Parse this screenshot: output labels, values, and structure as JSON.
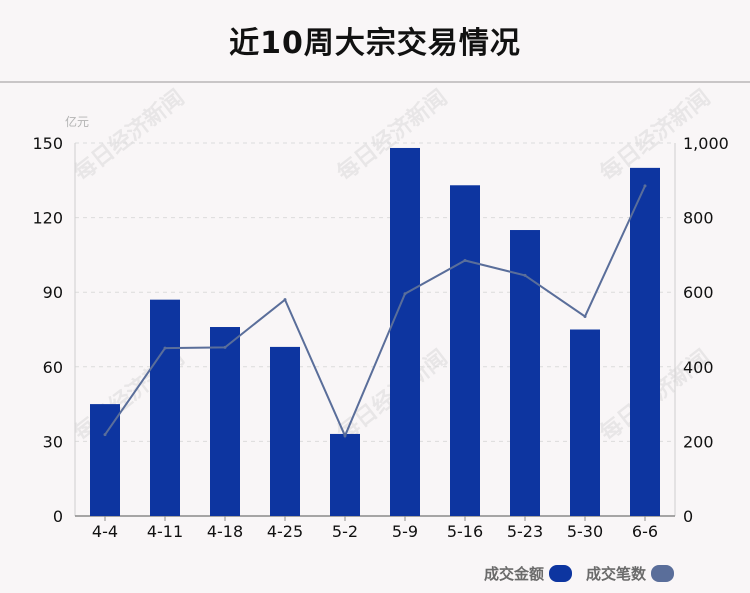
{
  "title": "近10周大宗交易情况",
  "watermark": "每日经济新闻",
  "chart_data": {
    "type": "bar+line",
    "categories": [
      "4-4",
      "4-11",
      "4-18",
      "4-25",
      "5-2",
      "5-9",
      "5-16",
      "5-23",
      "5-30",
      "6-6"
    ],
    "series": [
      {
        "name": "成交金额",
        "type": "bar",
        "axis": "left",
        "values": [
          45,
          87,
          76,
          68,
          33,
          148,
          133,
          115,
          75,
          140
        ],
        "color": "#0d35a0"
      },
      {
        "name": "成交笔数",
        "type": "line",
        "axis": "right",
        "values": [
          218,
          450,
          452,
          580,
          215,
          596,
          685,
          645,
          535,
          885
        ],
        "color": "#5a6e9a"
      }
    ],
    "y_left": {
      "unit": "亿元",
      "min": 0,
      "max": 150,
      "ticks": [
        "0",
        "30",
        "60",
        "90",
        "120",
        "150"
      ]
    },
    "y_right": {
      "min": 0,
      "max": 1000,
      "ticks": [
        "0",
        "200",
        "400",
        "600",
        "800",
        "1,000"
      ]
    },
    "grid": true,
    "legend_position": "bottom-right"
  }
}
